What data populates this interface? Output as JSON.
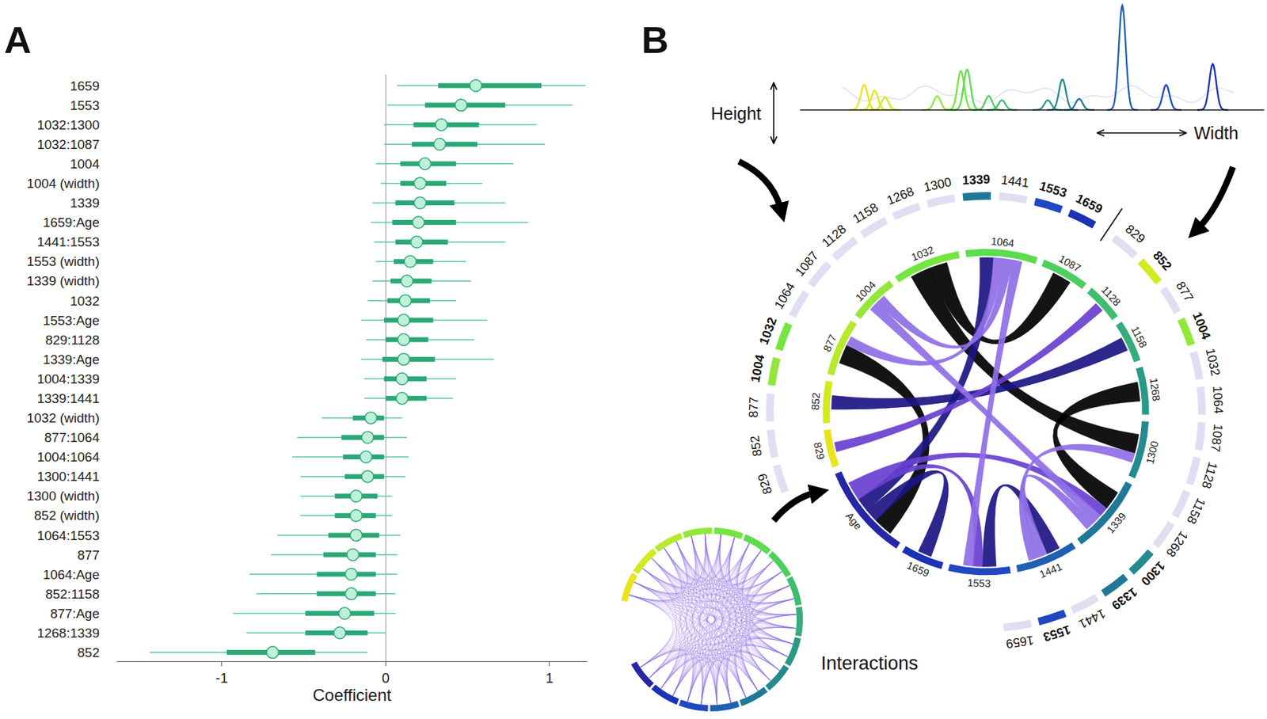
{
  "chart_data": {
    "type": "forest",
    "panel_label": "A",
    "x_label": "Coefficient",
    "categories": [
      "1659",
      "1553",
      "1032:1300",
      "1032:1087",
      "1004",
      "1004 (width)",
      "1339",
      "1659:Age",
      "1441:1553",
      "1553 (width)",
      "1339 (width)",
      "1032",
      "1553:Age",
      "829:1128",
      "1339:Age",
      "1004:1339",
      "1339:1441",
      "1032 (width)",
      "877:1064",
      "1004:1064",
      "1300:1441",
      "1300 (width)",
      "852 (width)",
      "1064:1553",
      "877",
      "1064:Age",
      "852:1158",
      "877:Age",
      "1268:1339",
      "852"
    ],
    "values": [
      0.55,
      0.46,
      0.34,
      0.33,
      0.24,
      0.21,
      0.21,
      0.2,
      0.19,
      0.15,
      0.13,
      0.12,
      0.11,
      0.11,
      0.11,
      0.1,
      0.1,
      -0.09,
      -0.11,
      -0.12,
      -0.11,
      -0.18,
      -0.18,
      -0.18,
      -0.2,
      -0.21,
      -0.21,
      -0.25,
      -0.28,
      -0.69
    ],
    "inner_interval": {
      "low": [
        0.32,
        0.24,
        0.17,
        0.16,
        0.09,
        0.09,
        0.06,
        0.04,
        0.06,
        0.05,
        0.03,
        0.01,
        -0.01,
        0.0,
        -0.02,
        -0.01,
        0.0,
        -0.2,
        -0.27,
        -0.26,
        -0.25,
        -0.31,
        -0.31,
        -0.35,
        -0.38,
        -0.42,
        -0.42,
        -0.49,
        -0.49,
        -0.97
      ],
      "high": [
        0.95,
        0.73,
        0.57,
        0.56,
        0.43,
        0.37,
        0.42,
        0.43,
        0.38,
        0.29,
        0.28,
        0.27,
        0.29,
        0.26,
        0.3,
        0.25,
        0.25,
        -0.01,
        -0.01,
        -0.01,
        -0.01,
        -0.05,
        -0.06,
        -0.04,
        -0.06,
        -0.06,
        -0.06,
        -0.07,
        -0.11,
        -0.43
      ]
    },
    "outer_interval": {
      "low": [
        0.07,
        0.01,
        -0.01,
        -0.01,
        -0.06,
        -0.03,
        -0.08,
        -0.09,
        -0.07,
        -0.06,
        -0.08,
        -0.11,
        -0.15,
        -0.12,
        -0.15,
        -0.13,
        -0.13,
        -0.39,
        -0.54,
        -0.57,
        -0.52,
        -0.52,
        -0.52,
        -0.66,
        -0.7,
        -0.83,
        -0.79,
        -0.93,
        -0.85,
        -1.44
      ],
      "high": [
        1.22,
        1.14,
        0.92,
        0.97,
        0.78,
        0.59,
        0.73,
        0.87,
        0.73,
        0.49,
        0.52,
        0.43,
        0.62,
        0.54,
        0.66,
        0.43,
        0.41,
        0.1,
        0.13,
        0.14,
        0.12,
        0.04,
        0.04,
        0.09,
        0.07,
        0.07,
        0.06,
        0.06,
        0.0,
        -0.11
      ]
    },
    "xlim": [
      -1.64,
      1.23
    ],
    "xticks": [
      -1,
      0,
      1
    ],
    "color": "#2aa876",
    "marker": "circle",
    "grid": false
  },
  "panel_b": {
    "panel_label": "B",
    "height_label": "Height",
    "width_label": "Width",
    "interactions_label": "Interactions",
    "inner_ring": [
      {
        "label": "829",
        "color": "#e8e41c"
      },
      {
        "label": "852",
        "color": "#d2ea1e"
      },
      {
        "label": "877",
        "color": "#b6ea2c"
      },
      {
        "label": "1004",
        "color": "#92e83a"
      },
      {
        "label": "1032",
        "color": "#74e640"
      },
      {
        "label": "1064",
        "color": "#5cdc4e"
      },
      {
        "label": "1087",
        "color": "#4ccf5e"
      },
      {
        "label": "1128",
        "color": "#3ebd6e"
      },
      {
        "label": "1158",
        "color": "#34ad7c"
      },
      {
        "label": "1268",
        "color": "#2a9a88"
      },
      {
        "label": "1300",
        "color": "#248a90"
      },
      {
        "label": "1339",
        "color": "#1f7898"
      },
      {
        "label": "1441",
        "color": "#2060b2"
      },
      {
        "label": "1553",
        "color": "#1f48c2"
      },
      {
        "label": "1659",
        "color": "#1b32b4"
      },
      {
        "label": "Age",
        "color": "#2626a8"
      }
    ],
    "outer_ring": {
      "height": [
        {
          "label": "829",
          "highlighted": false
        },
        {
          "label": "852",
          "highlighted": false
        },
        {
          "label": "877",
          "highlighted": false
        },
        {
          "label": "1004",
          "highlighted": true
        },
        {
          "label": "1032",
          "highlighted": true
        },
        {
          "label": "1064",
          "highlighted": false
        },
        {
          "label": "1087",
          "highlighted": false
        },
        {
          "label": "1128",
          "highlighted": false
        },
        {
          "label": "1158",
          "highlighted": false
        },
        {
          "label": "1268",
          "highlighted": false
        },
        {
          "label": "1300",
          "highlighted": false
        },
        {
          "label": "1339",
          "highlighted": true
        },
        {
          "label": "1441",
          "highlighted": false
        },
        {
          "label": "1553",
          "highlighted": true
        },
        {
          "label": "1659",
          "highlighted": true
        }
      ],
      "width": [
        {
          "label": "829",
          "highlighted": false
        },
        {
          "label": "852",
          "highlighted": true
        },
        {
          "label": "877",
          "highlighted": false
        },
        {
          "label": "1004",
          "highlighted": true
        },
        {
          "label": "1032",
          "highlighted": false
        },
        {
          "label": "1064",
          "highlighted": false
        },
        {
          "label": "1087",
          "highlighted": false
        },
        {
          "label": "1128",
          "highlighted": false
        },
        {
          "label": "1158",
          "highlighted": false
        },
        {
          "label": "1268",
          "highlighted": false
        },
        {
          "label": "1300",
          "highlighted": true
        },
        {
          "label": "1339",
          "highlighted": true
        },
        {
          "label": "1441",
          "highlighted": false
        },
        {
          "label": "1553",
          "highlighted": true
        },
        {
          "label": "1659",
          "highlighted": false
        }
      ]
    },
    "chords": [
      {
        "from": "1032",
        "to": "1300",
        "color": "#000000"
      },
      {
        "from": "1032",
        "to": "1087",
        "color": "#000000"
      },
      {
        "from": "877",
        "to": "Age",
        "color": "#000000"
      },
      {
        "from": "1268",
        "to": "1339",
        "color": "#000000"
      },
      {
        "from": "1659",
        "to": "Age",
        "color": "#1c1584"
      },
      {
        "from": "1441",
        "to": "1553",
        "color": "#1c1584"
      },
      {
        "from": "1064",
        "to": "Age",
        "color": "#1c1584"
      },
      {
        "from": "852",
        "to": "1158",
        "color": "#1c1584"
      },
      {
        "from": "1553",
        "to": "Age",
        "color": "#6a3fd0"
      },
      {
        "from": "829",
        "to": "1128",
        "color": "#6a3fd0"
      },
      {
        "from": "1339",
        "to": "Age",
        "color": "#6a3fd0"
      },
      {
        "from": "1004",
        "to": "1339",
        "color": "#8f6ee6"
      },
      {
        "from": "1339",
        "to": "1441",
        "color": "#8f6ee6"
      },
      {
        "from": "877",
        "to": "1064",
        "color": "#8f6ee6"
      },
      {
        "from": "1004",
        "to": "1064",
        "color": "#8f6ee6"
      },
      {
        "from": "1300",
        "to": "1441",
        "color": "#8f6ee6"
      },
      {
        "from": "1064",
        "to": "1553",
        "color": "#8f6ee6"
      }
    ]
  }
}
